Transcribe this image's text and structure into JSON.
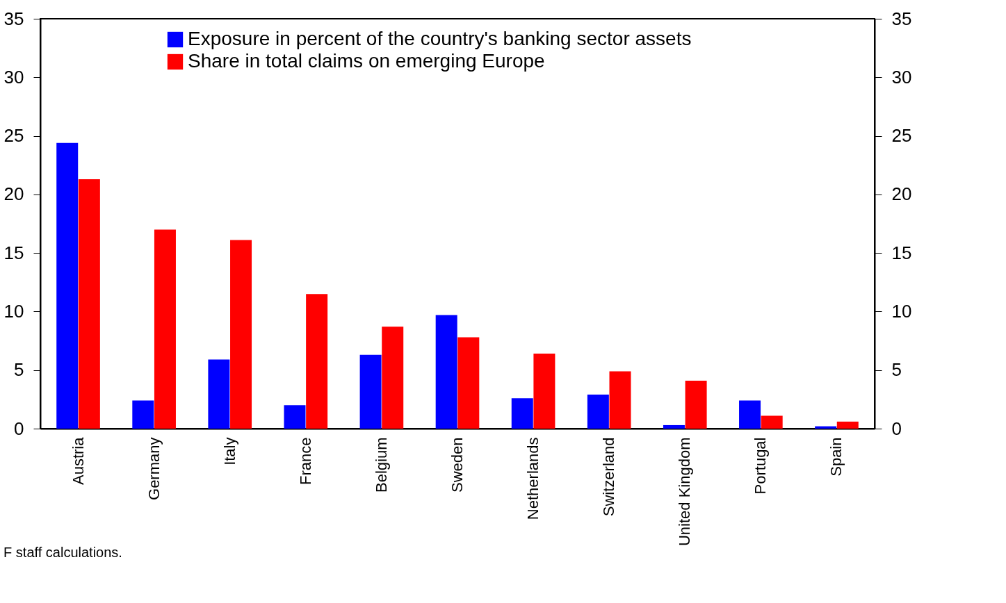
{
  "chart_data": {
    "type": "bar",
    "categories": [
      "Austria",
      "Germany",
      "Italy",
      "France",
      "Belgium",
      "Sweden",
      "Netherlands",
      "Switzerland",
      "United Kingdom",
      "Portugal",
      "Spain"
    ],
    "series": [
      {
        "name": "Exposure in percent of the country's banking sector assets",
        "color": "#0000ff",
        "values": [
          24.4,
          2.4,
          5.9,
          2.0,
          6.3,
          9.7,
          2.6,
          2.9,
          0.3,
          2.4,
          0.2
        ]
      },
      {
        "name": "Share in total claims on emerging Europe",
        "color": "#ff0000",
        "values": [
          21.3,
          17.0,
          16.1,
          11.5,
          8.7,
          7.8,
          6.4,
          4.9,
          4.1,
          1.1,
          0.6
        ]
      }
    ],
    "ylim": [
      0,
      35
    ],
    "yticks": [
      0,
      5,
      10,
      15,
      20,
      25,
      30,
      35
    ],
    "y2lim": [
      0,
      35
    ],
    "y2ticks": [
      0,
      5,
      10,
      15,
      20,
      25,
      30,
      35
    ],
    "legend": "top",
    "grid": false,
    "annotations": [
      "F staff calculations."
    ]
  }
}
